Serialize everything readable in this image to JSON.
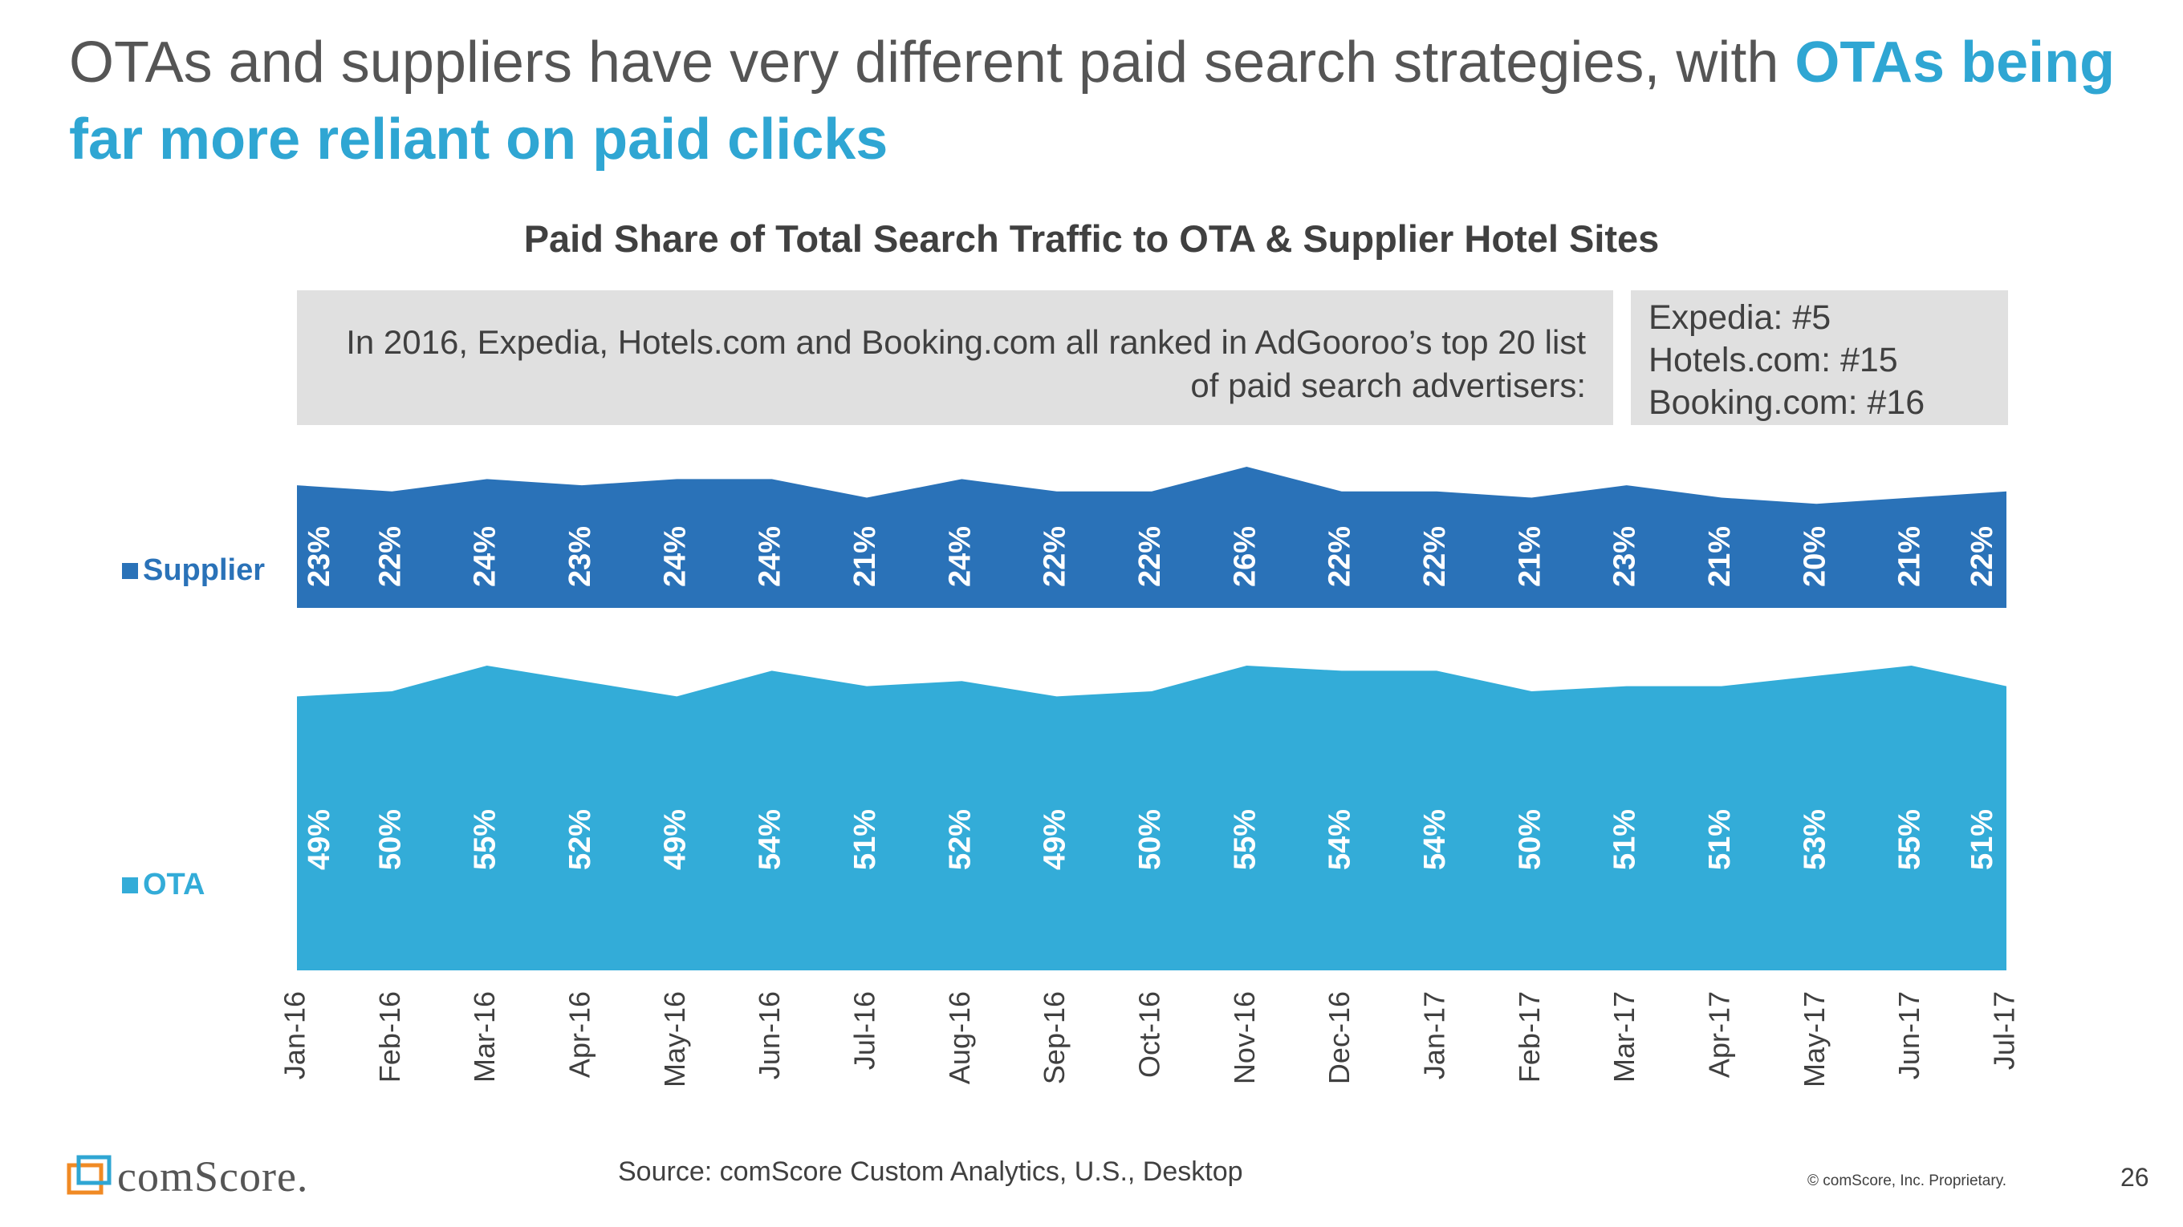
{
  "headline": {
    "part1": "OTAs and suppliers have very different paid search strategies, with ",
    "part2": "OTAs being far more reliant on paid clicks"
  },
  "note": {
    "text": "In 2016, Expedia, Hotels.com and Booking.com all ranked in AdGooroo’s top 20 list of paid search advertisers:"
  },
  "ranks": [
    "Expedia: #5",
    "Hotels.com: #15",
    "Booking.com: #16"
  ],
  "legend": {
    "supplier": "Supplier",
    "ota": "OTA"
  },
  "colors": {
    "supplier": "#2a72b8",
    "ota": "#33acd8",
    "accent": "#2fa6d3"
  },
  "footer": {
    "source": "Source: comScore Custom Analytics, U.S., Desktop",
    "copyright": "© comScore, Inc. Proprietary.",
    "page_number": "26",
    "logo_text": "comScore."
  },
  "chart_data": {
    "type": "area",
    "title": "Paid Share of Total Search Traffic to OTA & Supplier Hotel Sites",
    "categories": [
      "Jan-16",
      "Feb-16",
      "Mar-16",
      "Apr-16",
      "May-16",
      "Jun-16",
      "Jul-16",
      "Aug-16",
      "Sep-16",
      "Oct-16",
      "Nov-16",
      "Dec-16",
      "Jan-17",
      "Feb-17",
      "Mar-17",
      "Apr-17",
      "May-17",
      "Jun-17",
      "Jul-17"
    ],
    "series": [
      {
        "name": "Supplier",
        "values": [
          23,
          22,
          24,
          23,
          24,
          24,
          21,
          24,
          22,
          22,
          26,
          22,
          22,
          21,
          23,
          21,
          20,
          21,
          22
        ]
      },
      {
        "name": "OTA",
        "values": [
          49,
          50,
          55,
          52,
          49,
          54,
          51,
          52,
          49,
          50,
          55,
          54,
          54,
          50,
          51,
          51,
          53,
          55,
          51
        ]
      }
    ],
    "legend_position": "left",
    "grid": false
  }
}
